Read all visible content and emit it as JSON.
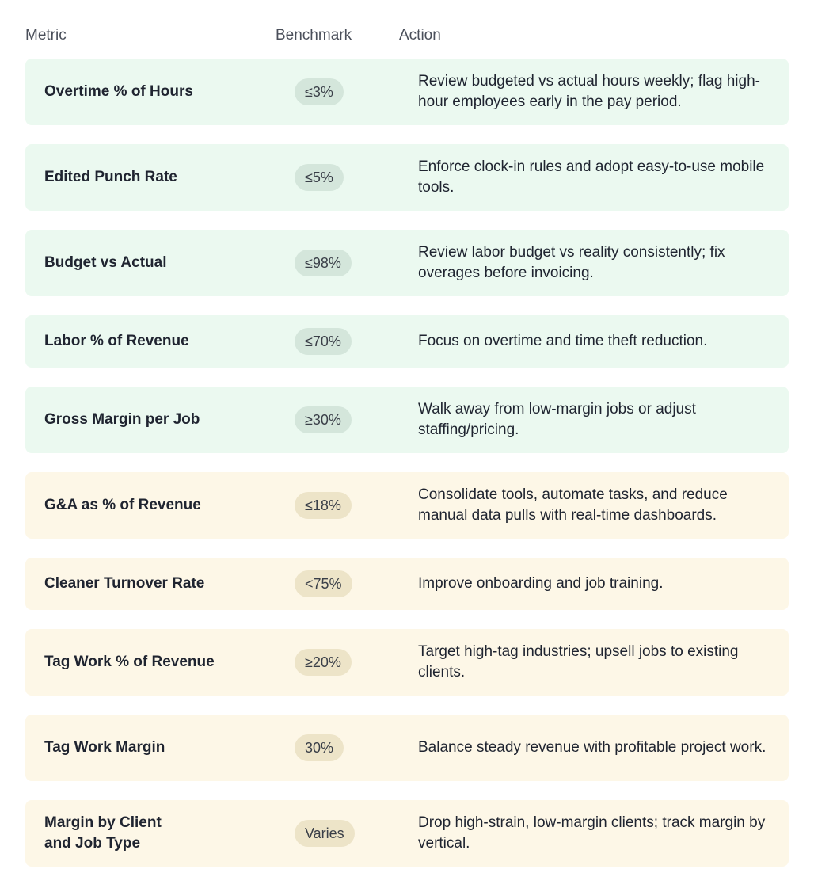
{
  "headers": {
    "metric": "Metric",
    "benchmark": "Benchmark",
    "action": "Action"
  },
  "colors": {
    "green_row": "#ebf9f0",
    "cream_row": "#fdf7e7",
    "green_pill": "#d4e6db",
    "cream_pill": "#ede4c8"
  },
  "rows": [
    {
      "metric": "Overtime % of Hours",
      "benchmark": "≤3%",
      "action": "Review budgeted vs actual hours weekly; flag high-hour employees early in the pay period."
    },
    {
      "metric": "Edited Punch Rate",
      "benchmark": "≤5%",
      "action": "Enforce clock-in rules and adopt easy-to-use mobile tools."
    },
    {
      "metric": "Budget vs Actual",
      "benchmark": "≤98%",
      "action": "Review labor budget vs reality consistently; fix overages before invoicing."
    },
    {
      "metric": "Labor % of Revenue",
      "benchmark": "≤70%",
      "action": "Focus on overtime and time theft reduction."
    },
    {
      "metric": "Gross Margin per Job",
      "benchmark": "≥30%",
      "action": "Walk away from low-margin jobs or adjust staffing/pricing."
    },
    {
      "metric": "G&A as % of Revenue",
      "benchmark": "≤18%",
      "action": "Consolidate tools, automate tasks, and reduce manual data pulls with real-time dashboards."
    },
    {
      "metric": "Cleaner Turnover Rate",
      "benchmark": "<75%",
      "action": "Improve onboarding and job training."
    },
    {
      "metric": "Tag Work % of Revenue",
      "benchmark": "≥20%",
      "action": "Target high-tag industries; upsell jobs to existing clients."
    },
    {
      "metric": "Tag Work Margin",
      "benchmark": "30%",
      "action": "Balance steady revenue with profitable project work."
    },
    {
      "metric": "Margin by Client and Job Type",
      "benchmark": "Varies",
      "action": "Drop high-strain, low-margin clients; track margin by vertical."
    }
  ]
}
